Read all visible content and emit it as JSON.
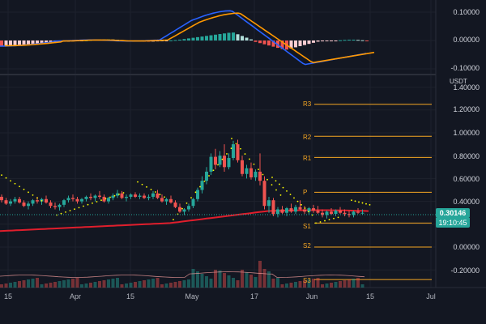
{
  "currency": "USDT",
  "price_tag": "0.30146",
  "timer": "19:10:45",
  "colors": {
    "up": "#26a69a",
    "down": "#ef5350",
    "pivot": "#f5a623",
    "ma": "#e01e2c",
    "sar": "#ffff00",
    "macd": "#2962ff",
    "signal": "#ff9800",
    "background": "#131722"
  },
  "pivots": [
    {
      "label": "R3",
      "value": 1.25
    },
    {
      "label": "R2",
      "value": 0.97
    },
    {
      "label": "R1",
      "value": 0.785
    },
    {
      "label": "P",
      "value": 0.48
    },
    {
      "label": "S1",
      "value": 0.21
    },
    {
      "label": "S2",
      "value": 0.0
    },
    {
      "label": "S3",
      "value": -0.285
    }
  ],
  "price_axis_ticks": [
    "1.40000",
    "1.20000",
    "1.00000",
    "0.80000",
    "0.60000",
    "0.40000",
    "0.00000",
    "-0.20000"
  ],
  "macd_axis_ticks": [
    "0.10000",
    "0.00000",
    "-0.10000"
  ],
  "time_axis": [
    "15",
    "Apr",
    "15",
    "May",
    "17",
    "Jun",
    "15",
    "Jul"
  ],
  "chart_data": {
    "type": "candlestick",
    "ylim": [
      -0.35,
      1.45
    ],
    "candles": [
      [
        0.44,
        0.46,
        0.39,
        0.41
      ],
      [
        0.41,
        0.43,
        0.37,
        0.38
      ],
      [
        0.38,
        0.42,
        0.36,
        0.4
      ],
      [
        0.4,
        0.44,
        0.38,
        0.42
      ],
      [
        0.42,
        0.44,
        0.38,
        0.39
      ],
      [
        0.39,
        0.41,
        0.35,
        0.36
      ],
      [
        0.36,
        0.4,
        0.33,
        0.38
      ],
      [
        0.38,
        0.42,
        0.36,
        0.41
      ],
      [
        0.41,
        0.44,
        0.38,
        0.4
      ],
      [
        0.4,
        0.43,
        0.37,
        0.42
      ],
      [
        0.42,
        0.45,
        0.38,
        0.39
      ],
      [
        0.39,
        0.41,
        0.34,
        0.36
      ],
      [
        0.36,
        0.39,
        0.33,
        0.35
      ],
      [
        0.35,
        0.38,
        0.32,
        0.37
      ],
      [
        0.37,
        0.42,
        0.35,
        0.41
      ],
      [
        0.41,
        0.45,
        0.39,
        0.43
      ],
      [
        0.43,
        0.46,
        0.4,
        0.42
      ],
      [
        0.42,
        0.44,
        0.38,
        0.4
      ],
      [
        0.4,
        0.43,
        0.38,
        0.42
      ],
      [
        0.42,
        0.45,
        0.4,
        0.44
      ],
      [
        0.44,
        0.47,
        0.41,
        0.43
      ],
      [
        0.43,
        0.46,
        0.4,
        0.45
      ],
      [
        0.45,
        0.49,
        0.42,
        0.44
      ],
      [
        0.44,
        0.46,
        0.39,
        0.4
      ],
      [
        0.4,
        0.44,
        0.38,
        0.43
      ],
      [
        0.43,
        0.47,
        0.41,
        0.45
      ],
      [
        0.45,
        0.5,
        0.43,
        0.47
      ],
      [
        0.47,
        0.49,
        0.42,
        0.43
      ],
      [
        0.43,
        0.46,
        0.4,
        0.44
      ],
      [
        0.44,
        0.47,
        0.42,
        0.46
      ],
      [
        0.46,
        0.48,
        0.43,
        0.44
      ],
      [
        0.44,
        0.47,
        0.42,
        0.45
      ],
      [
        0.45,
        0.47,
        0.42,
        0.43
      ],
      [
        0.43,
        0.46,
        0.41,
        0.44
      ],
      [
        0.44,
        0.49,
        0.42,
        0.47
      ],
      [
        0.47,
        0.5,
        0.42,
        0.43
      ],
      [
        0.43,
        0.46,
        0.39,
        0.4
      ],
      [
        0.4,
        0.43,
        0.37,
        0.42
      ],
      [
        0.42,
        0.45,
        0.38,
        0.39
      ],
      [
        0.39,
        0.41,
        0.34,
        0.35
      ],
      [
        0.35,
        0.38,
        0.3,
        0.31
      ],
      [
        0.31,
        0.34,
        0.28,
        0.33
      ],
      [
        0.33,
        0.38,
        0.31,
        0.36
      ],
      [
        0.36,
        0.43,
        0.34,
        0.42
      ],
      [
        0.42,
        0.52,
        0.4,
        0.5
      ],
      [
        0.5,
        0.62,
        0.47,
        0.58
      ],
      [
        0.58,
        0.7,
        0.55,
        0.66
      ],
      [
        0.66,
        0.82,
        0.63,
        0.79
      ],
      [
        0.79,
        0.86,
        0.68,
        0.72
      ],
      [
        0.72,
        0.84,
        0.7,
        0.8
      ],
      [
        0.8,
        0.9,
        0.66,
        0.7
      ],
      [
        0.7,
        0.82,
        0.68,
        0.78
      ],
      [
        0.78,
        0.93,
        0.76,
        0.9
      ],
      [
        0.9,
        0.94,
        0.74,
        0.76
      ],
      [
        0.76,
        0.8,
        0.62,
        0.64
      ],
      [
        0.64,
        0.72,
        0.6,
        0.69
      ],
      [
        0.69,
        0.74,
        0.59,
        0.61
      ],
      [
        0.61,
        0.68,
        0.58,
        0.66
      ],
      [
        0.66,
        0.82,
        0.54,
        0.58
      ],
      [
        0.58,
        0.62,
        0.33,
        0.36
      ],
      [
        0.36,
        0.44,
        0.3,
        0.41
      ],
      [
        0.41,
        0.43,
        0.27,
        0.29
      ],
      [
        0.29,
        0.35,
        0.26,
        0.33
      ],
      [
        0.33,
        0.36,
        0.29,
        0.3
      ],
      [
        0.3,
        0.35,
        0.27,
        0.34
      ],
      [
        0.34,
        0.38,
        0.3,
        0.31
      ],
      [
        0.31,
        0.37,
        0.29,
        0.35
      ],
      [
        0.35,
        0.41,
        0.32,
        0.33
      ],
      [
        0.33,
        0.36,
        0.29,
        0.31
      ],
      [
        0.31,
        0.35,
        0.28,
        0.34
      ],
      [
        0.34,
        0.37,
        0.3,
        0.32
      ],
      [
        0.32,
        0.36,
        0.29,
        0.3
      ],
      [
        0.3,
        0.33,
        0.26,
        0.28
      ],
      [
        0.28,
        0.32,
        0.25,
        0.31
      ],
      [
        0.31,
        0.34,
        0.28,
        0.29
      ],
      [
        0.29,
        0.33,
        0.27,
        0.32
      ],
      [
        0.32,
        0.35,
        0.29,
        0.3
      ],
      [
        0.3,
        0.33,
        0.27,
        0.29
      ],
      [
        0.29,
        0.32,
        0.26,
        0.28
      ],
      [
        0.28,
        0.32,
        0.26,
        0.31
      ],
      [
        0.31,
        0.34,
        0.29,
        0.3
      ],
      [
        0.3,
        0.33,
        0.28,
        0.3
      ]
    ]
  }
}
